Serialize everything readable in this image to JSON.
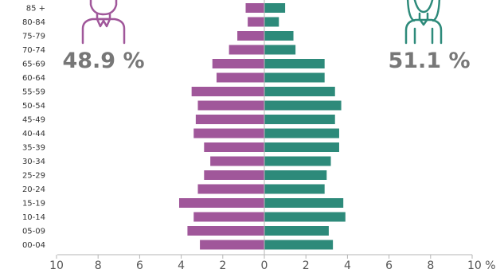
{
  "chart_data": {
    "type": "bar",
    "orientation": "horizontal",
    "layout": "population-pyramid",
    "categories": [
      "85 +",
      "80-84",
      "75-79",
      "70-74",
      "65-69",
      "60-64",
      "55-59",
      "50-54",
      "45-49",
      "40-44",
      "35-39",
      "30-34",
      "25-29",
      "20-24",
      "15-19",
      "10-14",
      "05-09",
      "00-04"
    ],
    "series": [
      {
        "side": "left",
        "color": "#a0579a",
        "values": [
          0.9,
          0.8,
          1.3,
          1.7,
          2.5,
          2.3,
          3.5,
          3.2,
          3.3,
          3.4,
          2.9,
          2.6,
          2.9,
          3.2,
          4.1,
          3.4,
          3.7,
          3.1
        ]
      },
      {
        "side": "right",
        "color": "#2d8a7a",
        "values": [
          1.0,
          0.7,
          1.4,
          1.5,
          2.9,
          2.9,
          3.4,
          3.7,
          3.4,
          3.6,
          3.6,
          3.2,
          3.0,
          2.9,
          3.8,
          3.9,
          3.1,
          3.3
        ]
      }
    ],
    "xticks": [
      "10",
      "8",
      "6",
      "4",
      "2",
      "0",
      "2",
      "4",
      "6",
      "8",
      "10 %"
    ],
    "xlim": [
      -10,
      10
    ],
    "grid": false,
    "annotations": {
      "left_total": "48.9 %",
      "right_total": "51.1 %"
    }
  },
  "icons": {
    "left": "male-person-icon",
    "right": "female-person-icon"
  },
  "colors": {
    "left_color": "#a0579a",
    "right_color": "#2d8a7a",
    "text": "#777777"
  }
}
